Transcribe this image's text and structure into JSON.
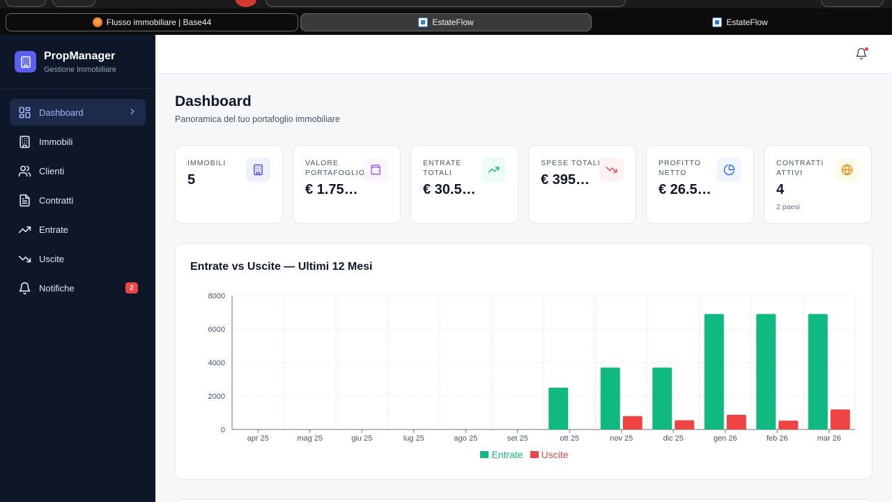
{
  "browser": {
    "tabs": [
      {
        "title": "Flusso immobiliare | Base44",
        "active": false
      },
      {
        "title": "EstateFlow",
        "active": true
      },
      {
        "title": "EstateFlow",
        "active": false
      }
    ]
  },
  "sidebar": {
    "brand_title": "PropManager",
    "brand_subtitle": "Gestione Immobiliare",
    "items": [
      {
        "label": "Dashboard",
        "icon": "dashboard-icon",
        "active": true
      },
      {
        "label": "Immobili",
        "icon": "building-icon"
      },
      {
        "label": "Clienti",
        "icon": "users-icon"
      },
      {
        "label": "Contratti",
        "icon": "document-icon"
      },
      {
        "label": "Entrate",
        "icon": "trending-up-icon"
      },
      {
        "label": "Uscite",
        "icon": "trending-down-icon"
      },
      {
        "label": "Notifiche",
        "icon": "bell-icon",
        "badge": "2"
      }
    ]
  },
  "header": {
    "title": "Dashboard",
    "subtitle": "Panoramica del tuo portafoglio immobiliare"
  },
  "stats": [
    {
      "label": "Immobili",
      "value": "5",
      "icon": "building-icon",
      "color": "#4f46e5",
      "bg": "#eef2ff"
    },
    {
      "label": "Valore portafoglio",
      "value": "€ 1.75…",
      "icon": "wallet-icon",
      "color": "#a855f7",
      "bg": "#faf5ff"
    },
    {
      "label": "Entrate totali",
      "value": "€ 30.5…",
      "icon": "trending-up-icon",
      "color": "#10b981",
      "bg": "#ecfdf5"
    },
    {
      "label": "Spese totali",
      "value": "€ 395…",
      "icon": "trending-down-icon",
      "color": "#ef4444",
      "bg": "#fef2f2"
    },
    {
      "label": "Profitto netto",
      "value": "€ 26.5…",
      "icon": "pie-chart-icon",
      "color": "#2563eb",
      "bg": "#eff6ff"
    },
    {
      "label": "Contratti attivi",
      "value": "4",
      "note": "2 paesi",
      "icon": "globe-icon",
      "color": "#ea8a0c",
      "bg": "#fffbeb"
    }
  ],
  "chart_title": "Entrate vs Uscite — Ultimi 12 Mesi",
  "chart_data": {
    "type": "bar",
    "title": "Entrate vs Uscite — Ultimi 12 Mesi",
    "categories": [
      "apr 25",
      "mag 25",
      "giu 25",
      "lug 25",
      "ago 25",
      "set 25",
      "ott 25",
      "nov 25",
      "dic 25",
      "gen 26",
      "feb 26",
      "mar 26"
    ],
    "series": [
      {
        "name": "Entrate",
        "color": "#10b981",
        "values": [
          0,
          0,
          0,
          0,
          0,
          0,
          2500,
          3700,
          3700,
          6900,
          6900,
          6900
        ]
      },
      {
        "name": "Uscite",
        "color": "#ef4444",
        "values": [
          0,
          0,
          0,
          0,
          0,
          0,
          0,
          800,
          550,
          880,
          530,
          1200
        ]
      }
    ],
    "ylim": [
      0,
      8000
    ],
    "yticks": [
      0,
      2000,
      4000,
      6000,
      8000
    ],
    "grid": true,
    "legend": "bottom"
  }
}
